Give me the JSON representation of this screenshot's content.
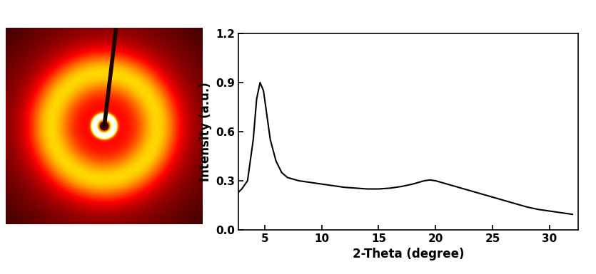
{
  "chart_data": {
    "type": "line",
    "x_label": "2-Theta (degree)",
    "y_label": "Intensity (a.u.)",
    "x": [
      2.7,
      3.0,
      3.5,
      4.0,
      4.3,
      4.6,
      4.9,
      5.2,
      5.5,
      6.0,
      6.5,
      7.0,
      7.5,
      8.0,
      9.0,
      10.0,
      11.0,
      12.0,
      13.0,
      14.0,
      15.0,
      16.0,
      17.0,
      18.0,
      19.0,
      19.5,
      20.0,
      21.0,
      22.0,
      23.0,
      24.0,
      25.0,
      26.0,
      27.0,
      28.0,
      29.0,
      30.0,
      31.0,
      32.0
    ],
    "values": [
      0.23,
      0.25,
      0.3,
      0.55,
      0.8,
      0.9,
      0.85,
      0.7,
      0.55,
      0.42,
      0.35,
      0.32,
      0.31,
      0.3,
      0.29,
      0.28,
      0.27,
      0.26,
      0.255,
      0.25,
      0.25,
      0.255,
      0.265,
      0.28,
      0.3,
      0.305,
      0.3,
      0.28,
      0.26,
      0.24,
      0.22,
      0.2,
      0.18,
      0.16,
      0.14,
      0.125,
      0.115,
      0.105,
      0.095
    ],
    "color": "#000000",
    "xlim": [
      2.7,
      32.5
    ],
    "ylim": [
      0,
      1.2
    ],
    "xticks": [
      5,
      10,
      15,
      20,
      25,
      30
    ],
    "yticks": [
      {
        "value": 0,
        "label": "0.0"
      },
      0.3,
      0.6,
      0.9,
      1.2
    ],
    "grid": false
  }
}
